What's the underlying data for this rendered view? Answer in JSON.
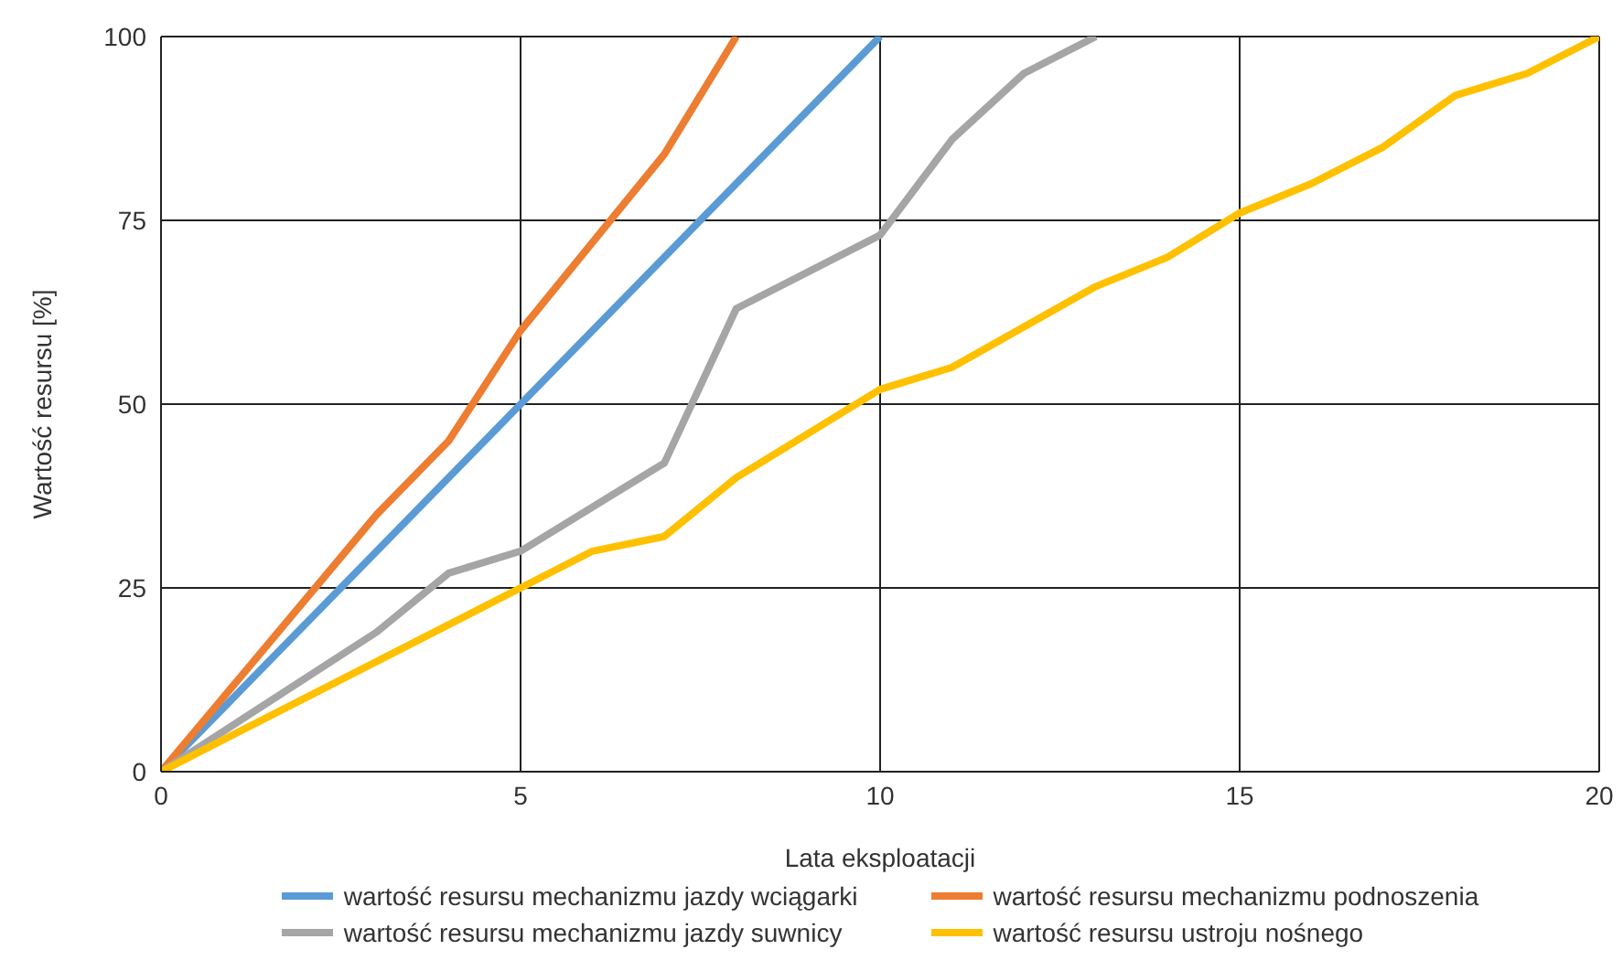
{
  "chart_data": {
    "type": "line",
    "xlabel": "Lata eksploatacji",
    "ylabel": "Wartość resursu [%]",
    "xlim": [
      0,
      20
    ],
    "xticks": [
      0,
      5,
      10,
      15,
      20
    ],
    "ylim": [
      0,
      100
    ],
    "yticks": [
      0,
      25,
      50,
      75,
      100
    ],
    "grid": true,
    "legend": "bottom",
    "marker": "none",
    "line_style": "solid",
    "series": [
      {
        "name": "wartość resursu mechanizmu jazdy wciągarki",
        "color": "#5b9bd5",
        "x": [
          0,
          10
        ],
        "values": [
          0,
          100
        ]
      },
      {
        "name": "wartość resursu mechanizmu podnoszenia",
        "color": "#ed7d31",
        "x": [
          0,
          3,
          4,
          5,
          7,
          8
        ],
        "values": [
          0,
          35,
          45,
          60,
          84,
          100
        ]
      },
      {
        "name": "wartość resursu mechanizmu jazdy suwnicy",
        "color": "#a5a5a5",
        "x": [
          0,
          3,
          4,
          5,
          7,
          8,
          10,
          11,
          12,
          13
        ],
        "values": [
          0,
          19,
          27,
          30,
          42,
          63,
          73,
          86,
          95,
          100
        ]
      },
      {
        "name": "wartość resursu ustroju nośnego",
        "color": "#ffc000",
        "x": [
          0,
          5,
          6,
          7,
          8,
          9,
          10,
          11,
          13,
          14,
          15,
          16,
          17,
          18,
          19,
          20
        ],
        "values": [
          0,
          25,
          30,
          32,
          40,
          46,
          52,
          55,
          66,
          70,
          76,
          80,
          85,
          92,
          95,
          100
        ]
      }
    ]
  }
}
